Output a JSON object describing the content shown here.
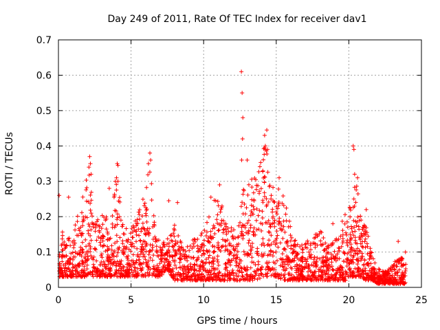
{
  "chart_data": {
    "type": "scatter",
    "title": "Day 249 of 2011, Rate Of TEC Index for receiver dav1",
    "xlabel": "GPS time / hours",
    "ylabel": "ROTI / TECUs",
    "xlim": [
      0,
      25
    ],
    "ylim": [
      0,
      0.7
    ],
    "x_ticks": [
      "0",
      "5",
      "10",
      "15",
      "20",
      "25"
    ],
    "y_ticks": [
      "0",
      "0.1",
      "0.2",
      "0.3",
      "0.4",
      "0.5",
      "0.6",
      "0.7"
    ],
    "grid": true,
    "marker": "plus",
    "color": "#ff0000",
    "envelope": [
      [
        0.0,
        0.03,
        0.12
      ],
      [
        0.3,
        0.03,
        0.16
      ],
      [
        0.6,
        0.03,
        0.14
      ],
      [
        1.0,
        0.03,
        0.17
      ],
      [
        1.5,
        0.03,
        0.22
      ],
      [
        1.9,
        0.03,
        0.3
      ],
      [
        2.1,
        0.04,
        0.36
      ],
      [
        2.4,
        0.03,
        0.24
      ],
      [
        2.8,
        0.03,
        0.2
      ],
      [
        3.2,
        0.03,
        0.22
      ],
      [
        3.6,
        0.03,
        0.15
      ],
      [
        4.0,
        0.03,
        0.34
      ],
      [
        4.4,
        0.03,
        0.18
      ],
      [
        4.8,
        0.03,
        0.16
      ],
      [
        5.2,
        0.03,
        0.18
      ],
      [
        5.6,
        0.03,
        0.24
      ],
      [
        6.0,
        0.03,
        0.26
      ],
      [
        6.3,
        0.03,
        0.37
      ],
      [
        6.6,
        0.03,
        0.2
      ],
      [
        7.0,
        0.03,
        0.12
      ],
      [
        7.5,
        0.05,
        0.14
      ],
      [
        8.0,
        0.02,
        0.18
      ],
      [
        8.5,
        0.02,
        0.12
      ],
      [
        9.0,
        0.02,
        0.13
      ],
      [
        9.5,
        0.02,
        0.14
      ],
      [
        10.0,
        0.02,
        0.16
      ],
      [
        10.5,
        0.02,
        0.22
      ],
      [
        11.0,
        0.02,
        0.28
      ],
      [
        11.5,
        0.02,
        0.2
      ],
      [
        12.0,
        0.02,
        0.18
      ],
      [
        12.3,
        0.02,
        0.16
      ],
      [
        12.7,
        0.02,
        0.3
      ],
      [
        13.0,
        0.02,
        0.29
      ],
      [
        13.3,
        0.02,
        0.33
      ],
      [
        13.7,
        0.02,
        0.35
      ],
      [
        14.0,
        0.03,
        0.38
      ],
      [
        14.3,
        0.03,
        0.42
      ],
      [
        14.6,
        0.03,
        0.3
      ],
      [
        15.0,
        0.03,
        0.29
      ],
      [
        15.4,
        0.02,
        0.29
      ],
      [
        15.8,
        0.02,
        0.22
      ],
      [
        16.2,
        0.02,
        0.14
      ],
      [
        16.6,
        0.02,
        0.12
      ],
      [
        17.0,
        0.02,
        0.13
      ],
      [
        17.5,
        0.02,
        0.14
      ],
      [
        18.0,
        0.02,
        0.17
      ],
      [
        18.5,
        0.02,
        0.12
      ],
      [
        19.0,
        0.02,
        0.13
      ],
      [
        19.4,
        0.02,
        0.18
      ],
      [
        19.8,
        0.02,
        0.22
      ],
      [
        20.2,
        0.03,
        0.26
      ],
      [
        20.5,
        0.03,
        0.3
      ],
      [
        20.8,
        0.03,
        0.22
      ],
      [
        21.2,
        0.02,
        0.18
      ],
      [
        21.6,
        0.02,
        0.1
      ],
      [
        22.0,
        0.01,
        0.06
      ],
      [
        22.5,
        0.01,
        0.05
      ],
      [
        23.0,
        0.01,
        0.07
      ],
      [
        23.5,
        0.01,
        0.08
      ],
      [
        23.9,
        0.01,
        0.1
      ]
    ],
    "outliers": [
      [
        12.6,
        0.61
      ],
      [
        12.65,
        0.55
      ],
      [
        12.7,
        0.48
      ],
      [
        12.68,
        0.42
      ],
      [
        12.62,
        0.36
      ],
      [
        14.35,
        0.445
      ],
      [
        14.2,
        0.43
      ],
      [
        14.25,
        0.4
      ],
      [
        14.4,
        0.39
      ],
      [
        20.3,
        0.4
      ],
      [
        20.35,
        0.39
      ],
      [
        20.4,
        0.32
      ],
      [
        20.6,
        0.31
      ],
      [
        4.05,
        0.35
      ],
      [
        4.1,
        0.345
      ],
      [
        4.0,
        0.31
      ],
      [
        4.1,
        0.3
      ],
      [
        6.3,
        0.38
      ],
      [
        6.35,
        0.36
      ],
      [
        6.2,
        0.35
      ],
      [
        2.15,
        0.37
      ],
      [
        2.2,
        0.35
      ],
      [
        2.1,
        0.34
      ],
      [
        2.25,
        0.32
      ],
      [
        0.05,
        0.26
      ],
      [
        0.7,
        0.255
      ],
      [
        8.2,
        0.24
      ],
      [
        7.6,
        0.245
      ],
      [
        3.5,
        0.28
      ],
      [
        13.0,
        0.36
      ],
      [
        15.2,
        0.31
      ],
      [
        11.1,
        0.29
      ],
      [
        10.5,
        0.255
      ],
      [
        18.9,
        0.18
      ],
      [
        23.9,
        0.1
      ],
      [
        23.4,
        0.13
      ],
      [
        21.2,
        0.22
      ],
      [
        17.8,
        0.15
      ]
    ]
  }
}
